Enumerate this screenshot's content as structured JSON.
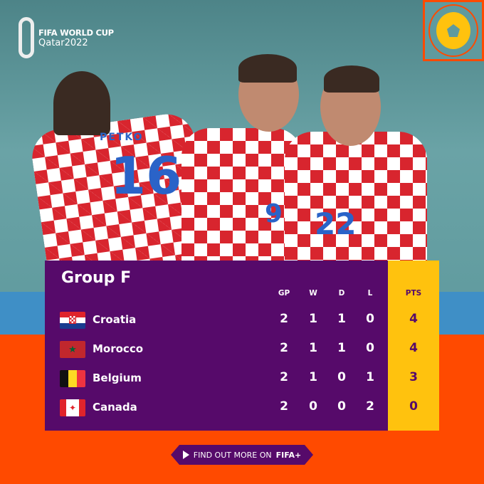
{
  "brand": {
    "line1": "FIFA WORLD CUP",
    "line2": "Qatar2022"
  },
  "photo": {
    "jersey_numbers": [
      "16",
      "9",
      "22"
    ],
    "player_name": "PETKO"
  },
  "table": {
    "title": "Group F",
    "headers": {
      "gp": "GP",
      "w": "W",
      "d": "D",
      "l": "L",
      "pts": "PTS"
    },
    "rows": [
      {
        "team": "Croatia",
        "flag": "croatia-flag",
        "gp": "2",
        "w": "1",
        "d": "1",
        "l": "0",
        "pts": "4"
      },
      {
        "team": "Morocco",
        "flag": "morocco-flag",
        "gp": "2",
        "w": "1",
        "d": "1",
        "l": "0",
        "pts": "4"
      },
      {
        "team": "Belgium",
        "flag": "belgium-flag",
        "gp": "2",
        "w": "1",
        "d": "0",
        "l": "1",
        "pts": "3"
      },
      {
        "team": "Canada",
        "flag": "canada-flag",
        "gp": "2",
        "w": "0",
        "d": "0",
        "l": "2",
        "pts": "0"
      }
    ]
  },
  "cta": {
    "text": "FIND OUT MORE ON",
    "brand": "FIFA+"
  },
  "colors": {
    "purple": "#560a6a",
    "orange": "#ff4a00",
    "yellow": "#ffc20e"
  }
}
